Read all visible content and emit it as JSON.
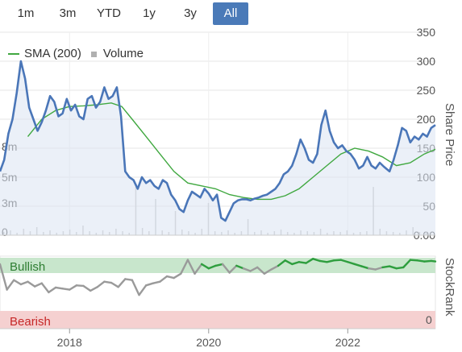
{
  "range_tabs": [
    {
      "label": "1m",
      "active": false
    },
    {
      "label": "3m",
      "active": false
    },
    {
      "label": "YTD",
      "active": false
    },
    {
      "label": "1y",
      "active": false
    },
    {
      "label": "3y",
      "active": false
    },
    {
      "label": "All",
      "active": true
    }
  ],
  "legend": {
    "sma_label": "SMA (200)",
    "volume_label": "Volume"
  },
  "colors": {
    "price": "#4a76b8",
    "sma": "#40a840",
    "volume": "#c8c8c8",
    "bullish_bg": "#c8e6cc",
    "bearish_bg": "#f5d0d0",
    "bullish_text": "#2e7d32",
    "bearish_text": "#c62828"
  },
  "chart_data": [
    {
      "type": "line",
      "title": "",
      "ylabel": "Share Price",
      "ylim": [
        0,
        350
      ],
      "y_ticks": [
        "350",
        "300",
        "250",
        "200",
        "150",
        "100",
        "50",
        "0.00"
      ],
      "volume_ticks": [
        "8m",
        "5m",
        "3m",
        "0"
      ],
      "x_ticks": [
        "2018",
        "2020",
        "2022"
      ],
      "grid": true,
      "legend_position": "top-left",
      "series": [
        {
          "name": "Share Price",
          "x": [
            2017.0,
            2017.06,
            2017.12,
            2017.18,
            2017.24,
            2017.3,
            2017.36,
            2017.42,
            2017.48,
            2017.54,
            2017.6,
            2017.66,
            2017.72,
            2017.78,
            2017.84,
            2017.9,
            2017.96,
            2018.02,
            2018.08,
            2018.14,
            2018.2,
            2018.26,
            2018.32,
            2018.38,
            2018.44,
            2018.5,
            2018.56,
            2018.62,
            2018.68,
            2018.74,
            2018.8,
            2018.86,
            2018.92,
            2018.98,
            2019.04,
            2019.1,
            2019.16,
            2019.22,
            2019.28,
            2019.34,
            2019.4,
            2019.46,
            2019.52,
            2019.58,
            2019.64,
            2019.7,
            2019.76,
            2019.82,
            2019.88,
            2019.94,
            2020.0,
            2020.06,
            2020.12,
            2020.18,
            2020.24,
            2020.3,
            2020.36,
            2020.42,
            2020.48,
            2020.54,
            2020.6,
            2020.66,
            2020.72,
            2020.78,
            2020.84,
            2020.9,
            2020.96,
            2021.02,
            2021.08,
            2021.14,
            2021.2,
            2021.26,
            2021.32,
            2021.38,
            2021.44,
            2021.5,
            2021.56,
            2021.62,
            2021.68,
            2021.74,
            2021.8,
            2021.86,
            2021.92,
            2021.98,
            2022.04,
            2022.1,
            2022.16,
            2022.22,
            2022.28,
            2022.34,
            2022.4,
            2022.46,
            2022.52,
            2022.6,
            2022.66,
            2022.72,
            2022.78,
            2022.84,
            2022.9,
            2022.96,
            2023.02,
            2023.08,
            2023.14,
            2023.2,
            2023.26
          ],
          "values": [
            110,
            130,
            175,
            200,
            245,
            300,
            270,
            220,
            200,
            180,
            195,
            215,
            240,
            230,
            205,
            210,
            235,
            215,
            225,
            205,
            200,
            235,
            240,
            220,
            230,
            255,
            235,
            240,
            255,
            205,
            110,
            100,
            95,
            80,
            100,
            90,
            95,
            85,
            80,
            95,
            90,
            70,
            60,
            45,
            40,
            60,
            75,
            70,
            65,
            80,
            72,
            60,
            70,
            30,
            25,
            40,
            55,
            60,
            62,
            62,
            60,
            63,
            65,
            68,
            70,
            75,
            80,
            90,
            105,
            110,
            120,
            140,
            165,
            150,
            130,
            125,
            140,
            190,
            215,
            180,
            160,
            150,
            155,
            145,
            140,
            130,
            115,
            120,
            135,
            120,
            115,
            125,
            118,
            110,
            130,
            155,
            185,
            180,
            160,
            170,
            165,
            175,
            170,
            185,
            190
          ]
        },
        {
          "name": "SMA (200)",
          "x": [
            2017.4,
            2017.6,
            2017.8,
            2018.0,
            2018.2,
            2018.4,
            2018.6,
            2018.75,
            2018.9,
            2019.1,
            2019.3,
            2019.5,
            2019.7,
            2019.9,
            2020.1,
            2020.3,
            2020.5,
            2020.7,
            2020.9,
            2021.1,
            2021.3,
            2021.5,
            2021.7,
            2021.9,
            2022.1,
            2022.3,
            2022.5,
            2022.7,
            2022.9,
            2023.1,
            2023.26
          ],
          "values": [
            170,
            200,
            215,
            222,
            223,
            225,
            228,
            222,
            200,
            170,
            140,
            110,
            90,
            85,
            80,
            70,
            65,
            62,
            62,
            68,
            80,
            100,
            120,
            140,
            150,
            145,
            135,
            120,
            125,
            140,
            148
          ]
        }
      ]
    },
    {
      "type": "line",
      "title": "",
      "ylabel": "StockRank",
      "ylim": [
        0,
        100
      ],
      "y_ticks": [
        "0"
      ],
      "bands": [
        "Bullish",
        "Bearish"
      ],
      "series": [
        {
          "name": "StockRank",
          "x": [
            2017.0,
            2017.1,
            2017.2,
            2017.3,
            2017.4,
            2017.5,
            2017.6,
            2017.7,
            2017.8,
            2017.9,
            2018.0,
            2018.1,
            2018.2,
            2018.3,
            2018.4,
            2018.5,
            2018.6,
            2018.7,
            2018.8,
            2018.9,
            2019.0,
            2019.1,
            2019.2,
            2019.3,
            2019.4,
            2019.5,
            2019.6,
            2019.7,
            2019.8,
            2019.9,
            2020.0,
            2020.1,
            2020.2,
            2020.3,
            2020.4,
            2020.5,
            2020.6,
            2020.7,
            2020.8,
            2020.9,
            2021.0,
            2021.1,
            2021.2,
            2021.3,
            2021.4,
            2021.5,
            2021.6,
            2021.7,
            2021.8,
            2021.9,
            2022.0,
            2022.1,
            2022.2,
            2022.3,
            2022.4,
            2022.5,
            2022.6,
            2022.7,
            2022.8,
            2022.9,
            2023.0,
            2023.1,
            2023.2,
            2023.26
          ],
          "values": [
            88,
            40,
            58,
            50,
            55,
            46,
            52,
            35,
            44,
            42,
            40,
            48,
            47,
            38,
            45,
            55,
            53,
            45,
            60,
            58,
            30,
            48,
            52,
            55,
            65,
            62,
            70,
            96,
            70,
            88,
            80,
            85,
            88,
            72,
            85,
            80,
            75,
            82,
            70,
            78,
            85,
            95,
            88,
            92,
            90,
            98,
            94,
            92,
            95,
            96,
            92,
            88,
            84,
            80,
            78,
            82,
            84,
            80,
            82,
            96,
            95,
            93,
            94,
            93
          ]
        }
      ]
    }
  ]
}
